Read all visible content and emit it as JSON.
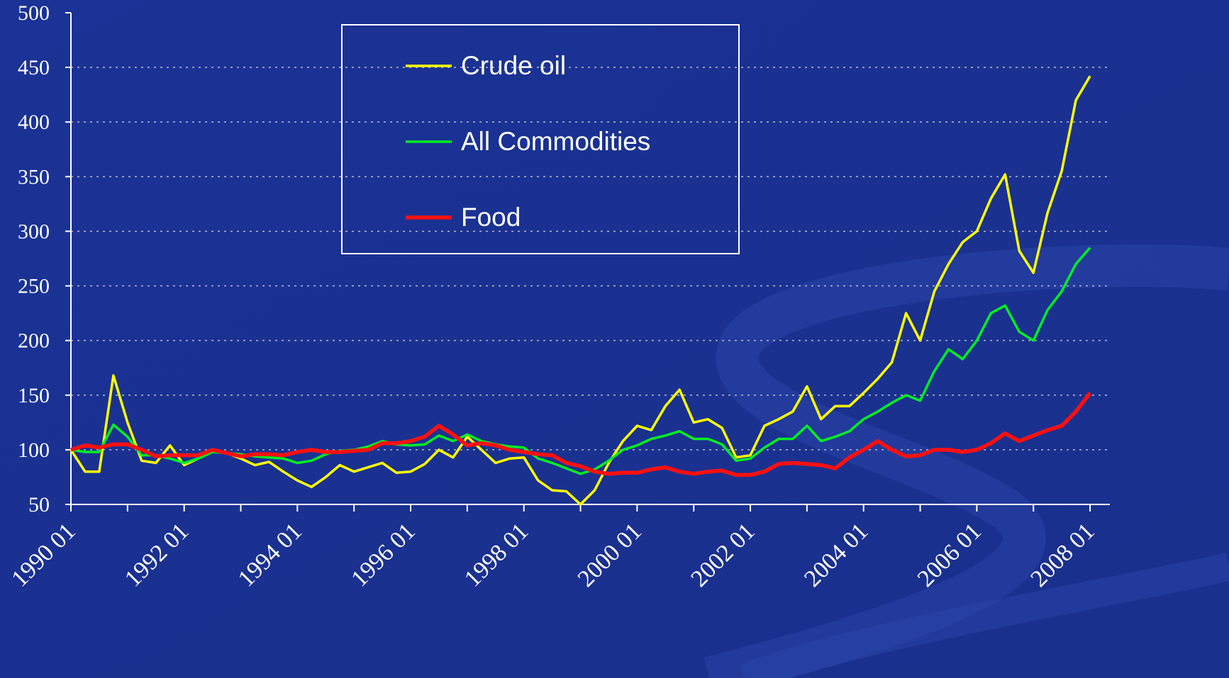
{
  "chart_data": {
    "type": "line",
    "x": [
      1990,
      1990.25,
      1990.5,
      1990.75,
      1991,
      1991.25,
      1991.5,
      1991.75,
      1992,
      1992.25,
      1992.5,
      1992.75,
      1993,
      1993.25,
      1993.5,
      1993.75,
      1994,
      1994.25,
      1994.5,
      1994.75,
      1995,
      1995.25,
      1995.5,
      1995.75,
      1996,
      1996.25,
      1996.5,
      1996.75,
      1997,
      1997.25,
      1997.5,
      1997.75,
      1998,
      1998.25,
      1998.5,
      1998.75,
      1999,
      1999.25,
      1999.5,
      1999.75,
      2000,
      2000.25,
      2000.5,
      2000.75,
      2001,
      2001.25,
      2001.5,
      2001.75,
      2002,
      2002.25,
      2002.5,
      2002.75,
      2003,
      2003.25,
      2003.5,
      2003.75,
      2004,
      2004.25,
      2004.5,
      2004.75,
      2005,
      2005.25,
      2005.5,
      2005.75,
      2006,
      2006.25,
      2006.5,
      2006.75,
      2007,
      2007.25,
      2007.5,
      2007.75,
      2008
    ],
    "series": [
      {
        "name": "Crude oil",
        "color": "#ffff00",
        "width": 3.5,
        "values": [
          100,
          80,
          80,
          168,
          125,
          90,
          88,
          104,
          86,
          92,
          100,
          97,
          92,
          86,
          89,
          80,
          72,
          66,
          75,
          86,
          80,
          84,
          88,
          79,
          80,
          87,
          100,
          93,
          112,
          100,
          88,
          92,
          93,
          72,
          63,
          62,
          50,
          63,
          88,
          108,
          122,
          118,
          140,
          155,
          125,
          128,
          120,
          93,
          95,
          122,
          128,
          135,
          158,
          128,
          140,
          140,
          152,
          165,
          180,
          225,
          200,
          245,
          270,
          290,
          300,
          330,
          352,
          282,
          262,
          317,
          355,
          420,
          442
        ]
      },
      {
        "name": "All Commodities",
        "color": "#00ee22",
        "width": 3.5,
        "values": [
          100,
          98,
          98,
          123,
          112,
          95,
          95,
          92,
          88,
          92,
          98,
          97,
          96,
          94,
          93,
          92,
          88,
          90,
          96,
          99,
          100,
          103,
          108,
          105,
          104,
          105,
          113,
          108,
          114,
          108,
          105,
          103,
          102,
          92,
          88,
          83,
          78,
          82,
          90,
          100,
          104,
          110,
          113,
          117,
          110,
          110,
          105,
          90,
          92,
          102,
          110,
          110,
          122,
          108,
          112,
          117,
          128,
          135,
          143,
          150,
          145,
          172,
          192,
          183,
          200,
          225,
          232,
          208,
          200,
          228,
          245,
          270,
          285
        ]
      },
      {
        "name": "Food",
        "color": "#ff1010",
        "width": 5.5,
        "values": [
          100,
          104,
          102,
          105,
          105,
          100,
          94,
          95,
          95,
          95,
          100,
          97,
          94,
          96,
          96,
          95,
          98,
          100,
          98,
          98,
          99,
          100,
          106,
          106,
          108,
          112,
          122,
          114,
          104,
          106,
          104,
          100,
          98,
          96,
          95,
          88,
          85,
          80,
          78,
          79,
          79,
          82,
          84,
          80,
          78,
          80,
          81,
          77,
          77,
          80,
          87,
          88,
          87,
          86,
          83,
          93,
          100,
          108,
          100,
          94,
          95,
          100,
          100,
          98,
          100,
          106,
          115,
          108,
          113,
          118,
          122,
          135,
          152
        ]
      }
    ],
    "xlim": [
      1990,
      2008.35
    ],
    "xticks": [
      {
        "value": 1990,
        "label": "1990 01"
      },
      {
        "value": 1992,
        "label": "1992 01"
      },
      {
        "value": 1994,
        "label": "1994 01"
      },
      {
        "value": 1996,
        "label": "1996 01"
      },
      {
        "value": 1998,
        "label": "1998 01"
      },
      {
        "value": 2000,
        "label": "2000 01"
      },
      {
        "value": 2002,
        "label": "2002 01"
      },
      {
        "value": 2004,
        "label": "2004 01"
      },
      {
        "value": 2006,
        "label": "2006 01"
      },
      {
        "value": 2008,
        "label": "2008 01"
      }
    ],
    "xminorticks": [
      1991,
      1993,
      1995,
      1997,
      1999,
      2001,
      2003,
      2005,
      2007
    ],
    "ylim": [
      50,
      500
    ],
    "yticks": [
      50,
      100,
      150,
      200,
      250,
      300,
      350,
      400,
      450,
      500
    ],
    "grid": true,
    "legend": "top-center"
  }
}
